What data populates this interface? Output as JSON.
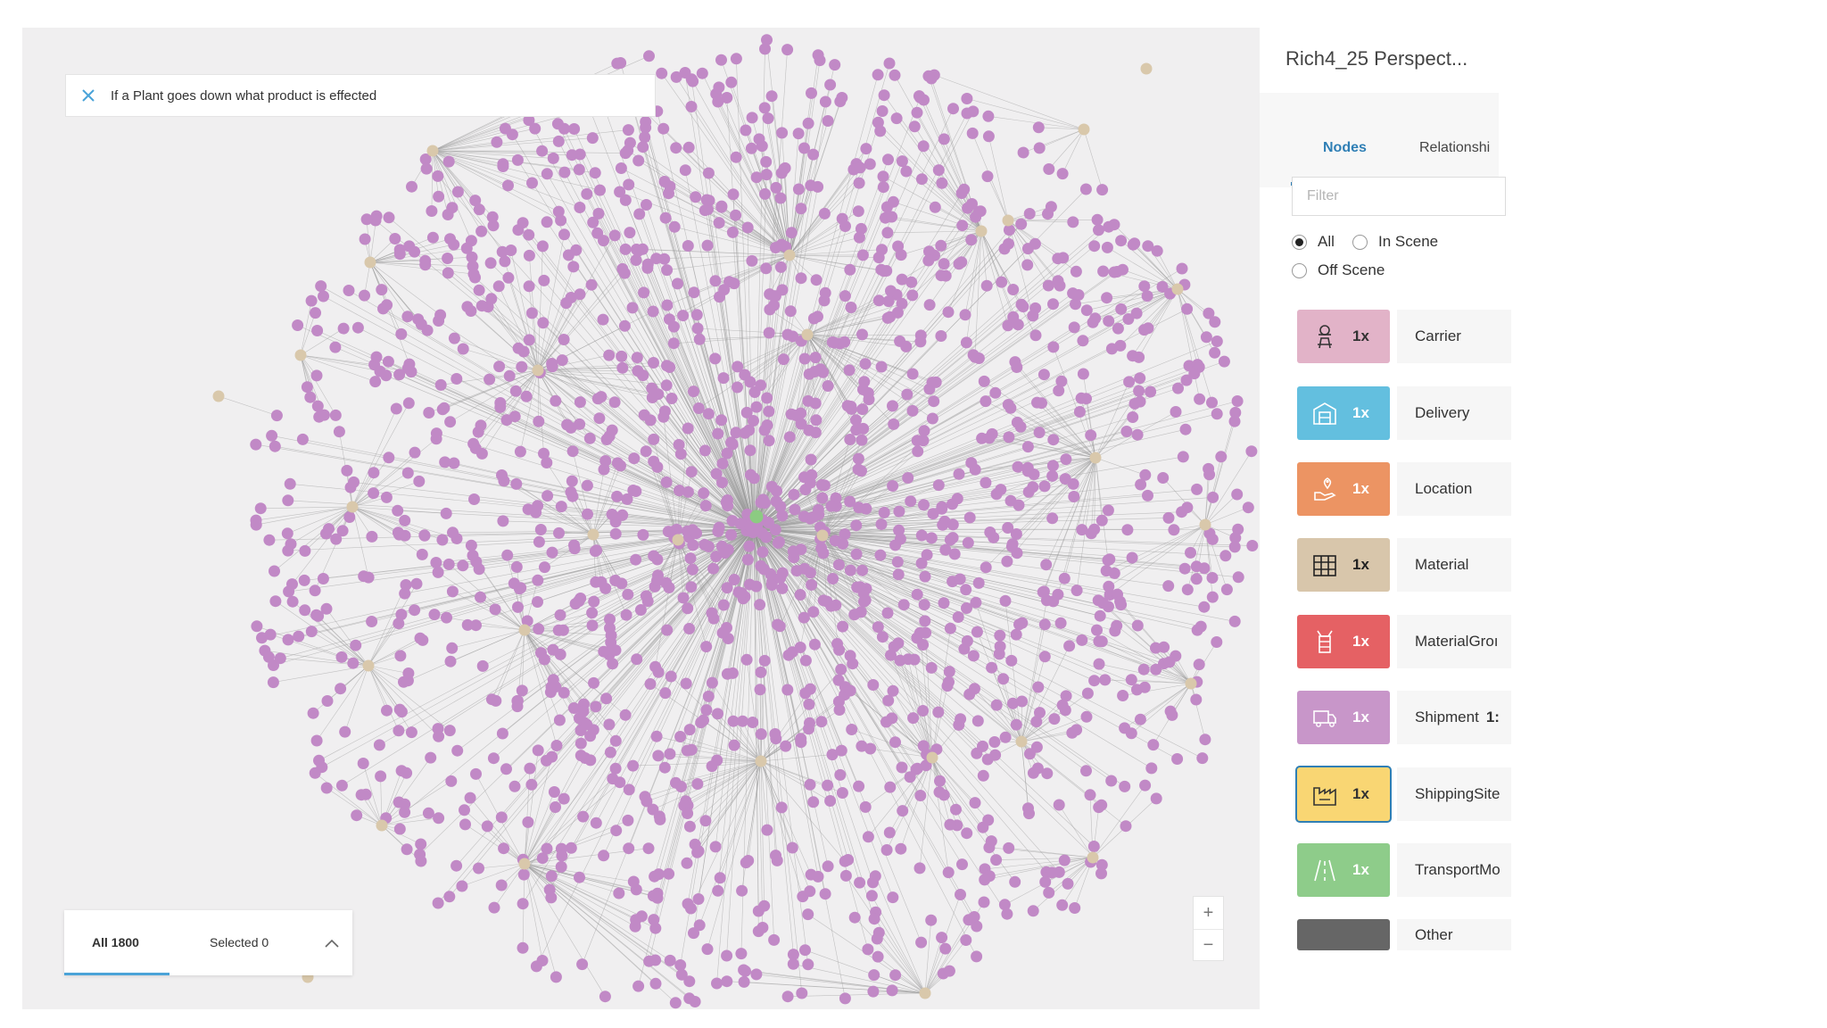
{
  "query": {
    "text": "If a Plant goes down what product is effected"
  },
  "results": {
    "all_label": "All 1800",
    "selected_label": "Selected 0"
  },
  "zoom": {
    "in_label": "+",
    "out_label": "−"
  },
  "panel": {
    "title": "Rich4_25 Perspect...",
    "tabs": [
      {
        "label": "Nodes",
        "active": true
      },
      {
        "label": "Relationshi",
        "active": false
      }
    ],
    "filter_placeholder": "Filter",
    "radios": [
      {
        "label": "All",
        "checked": true
      },
      {
        "label": "In Scene",
        "checked": false
      },
      {
        "label": "Off Scene",
        "checked": false
      }
    ],
    "categories": [
      {
        "label": "Carrier",
        "multiplier": "1x",
        "color": "#e2b3c8",
        "icon": "carrier-person-icon"
      },
      {
        "label": "Delivery",
        "multiplier": "1x",
        "color": "#63bfdf",
        "icon": "delivery-building-icon"
      },
      {
        "label": "Location",
        "multiplier": "1x",
        "color": "#ec9463",
        "icon": "location-pin-icon"
      },
      {
        "label": "Material",
        "multiplier": "1x",
        "color": "#d8c6ab",
        "icon": "material-grid-icon"
      },
      {
        "label": "MaterialGroı",
        "multiplier": "1x",
        "color": "#e56164",
        "icon": "material-group-icon"
      },
      {
        "label": "Shipment",
        "count": "1:",
        "multiplier": "1x",
        "color": "#c896c9",
        "icon": "shipment-truck-icon"
      },
      {
        "label": "ShippingSite",
        "multiplier": "1x",
        "color": "#f9d673",
        "icon": "shipping-site-factory-icon",
        "selected": true
      },
      {
        "label": "TransportMo",
        "multiplier": "1x",
        "color": "#8ecc8a",
        "icon": "transport-road-icon"
      },
      {
        "label": "Other",
        "color": "#666666",
        "icon": ""
      }
    ]
  },
  "graph": {
    "node_color": "#c189c6",
    "hub_color": "#d9c8ab",
    "focus_color": "#8ccb82",
    "edge_color": "#9a9a9a",
    "background": "#f0eff0"
  }
}
